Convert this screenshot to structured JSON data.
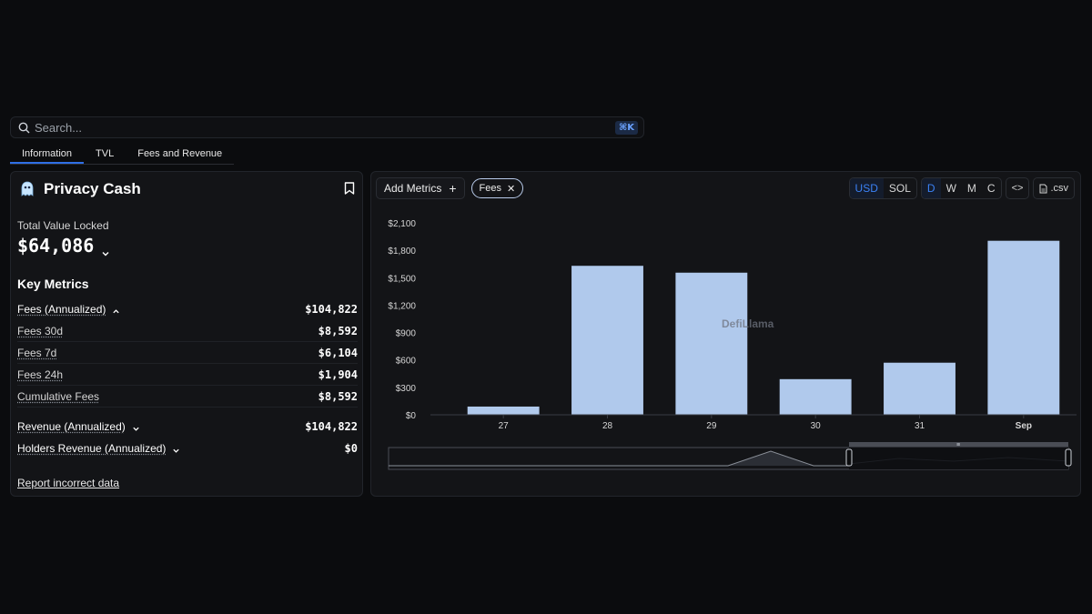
{
  "search": {
    "placeholder": "Search...",
    "shortcut": "⌘K"
  },
  "tabs": [
    {
      "label": "Information",
      "active": true
    },
    {
      "label": "TVL",
      "active": false
    },
    {
      "label": "Fees and Revenue",
      "active": false
    }
  ],
  "protocol": {
    "name": "Privacy Cash",
    "logo_icon": "ghost-icon"
  },
  "tvl": {
    "label": "Total Value Locked",
    "value": "$64,086"
  },
  "key_metrics": {
    "title": "Key Metrics",
    "fees_annualized": {
      "label": "Fees (Annualized)",
      "value": "$104,822"
    },
    "fees_sub": [
      {
        "label": "Fees 30d",
        "value": "$8,592"
      },
      {
        "label": "Fees 7d",
        "value": "$6,104"
      },
      {
        "label": "Fees 24h",
        "value": "$1,904"
      },
      {
        "label": "Cumulative Fees",
        "value": "$8,592"
      }
    ],
    "revenue_annualized": {
      "label": "Revenue (Annualized)",
      "value": "$104,822"
    },
    "holders_revenue": {
      "label": "Holders Revenue (Annualized)",
      "value": "$0"
    }
  },
  "report_link": "Report incorrect data",
  "chart_toolbar": {
    "add_metrics": "Add Metrics",
    "chip": "Fees",
    "currency": [
      "USD",
      "SOL"
    ],
    "currency_selected": "USD",
    "interval": [
      "D",
      "W",
      "M",
      "C"
    ],
    "interval_selected": "D",
    "embed": "<>",
    "csv": ".csv"
  },
  "watermark": "DefiLlama",
  "colors": {
    "bar": "#b0c9ec",
    "accent": "#3b82f6",
    "background": "#0b0c0e",
    "panel": "#131417"
  },
  "chart_data": {
    "type": "bar",
    "categories": [
      "27",
      "28",
      "29",
      "30",
      "31",
      "Sep"
    ],
    "values": [
      90,
      1630,
      1555,
      390,
      570,
      1904
    ],
    "yticks": [
      "$0",
      "$300",
      "$600",
      "$900",
      "$1,200",
      "$1,500",
      "$1,800",
      "$2,100"
    ],
    "ylim": [
      0,
      2100
    ],
    "grid": false
  }
}
